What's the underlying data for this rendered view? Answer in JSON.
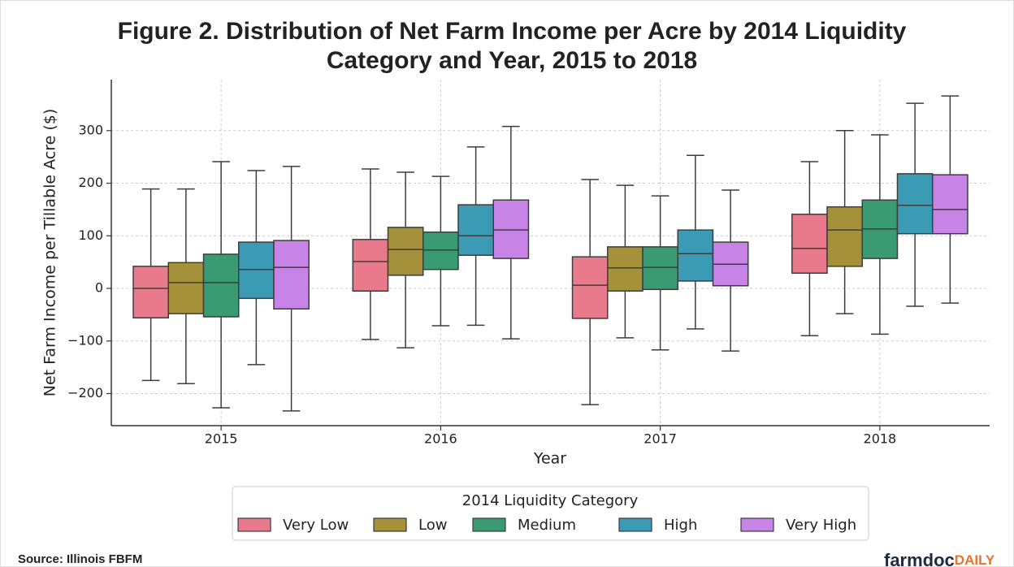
{
  "chart_data": {
    "type": "box",
    "title": "Figure 2. Distribution of Net Farm Income per Acre by 2014 Liquidity Category and Year, 2015 to 2018",
    "title_lines": [
      "Figure 2. Distribution of Net Farm Income per Acre by 2014 Liquidity",
      "Category and Year, 2015 to 2018"
    ],
    "x_label": "Year",
    "y_label": "Net Farm Income per Tillable Acre ($)",
    "categories": [
      "2015",
      "2016",
      "2017",
      "2018"
    ],
    "ylim": [
      -261,
      397
    ],
    "yticks": [
      {
        "value": -200,
        "label": "−200"
      },
      {
        "value": -100,
        "label": "−100"
      },
      0,
      100,
      200,
      300
    ],
    "grid": true,
    "legend_title": "2014 Liquidity Category",
    "legend_position": "bottom",
    "series": [
      {
        "name": "Very Low",
        "color": "#e87a8c",
        "min": [
          -175,
          -97,
          -221,
          -90
        ],
        "q1": [
          -56,
          -5,
          -57,
          29
        ],
        "median": [
          0,
          51,
          6,
          76
        ],
        "q3": [
          42,
          93,
          60,
          141
        ],
        "max": [
          189,
          227,
          207,
          241
        ]
      },
      {
        "name": "Low",
        "color": "#a4913a",
        "min": [
          -181,
          -113,
          -94,
          -48
        ],
        "q1": [
          -48,
          25,
          -5,
          42
        ],
        "median": [
          11,
          74,
          39,
          111
        ],
        "q3": [
          49,
          116,
          79,
          155
        ],
        "max": [
          189,
          221,
          196,
          300
        ]
      },
      {
        "name": "Medium",
        "color": "#3a9a72",
        "min": [
          -227,
          -71,
          -117,
          -87
        ],
        "q1": [
          -54,
          36,
          -2,
          57
        ],
        "median": [
          11,
          73,
          40,
          113
        ],
        "q3": [
          65,
          107,
          79,
          168
        ],
        "max": [
          241,
          213,
          176,
          292
        ]
      },
      {
        "name": "High",
        "color": "#3c9bb4",
        "min": [
          -145,
          -70,
          -77,
          -34
        ],
        "q1": [
          -19,
          63,
          14,
          104
        ],
        "median": [
          36,
          100,
          66,
          158
        ],
        "q3": [
          88,
          159,
          111,
          218
        ],
        "max": [
          224,
          269,
          253,
          352
        ]
      },
      {
        "name": "Very High",
        "color": "#c883e6",
        "min": [
          -233,
          -96,
          -119,
          -28
        ],
        "q1": [
          -39,
          57,
          5,
          104
        ],
        "median": [
          40,
          111,
          46,
          150
        ],
        "q3": [
          91,
          168,
          88,
          216
        ],
        "max": [
          232,
          308,
          187,
          366
        ]
      }
    ]
  },
  "source": "Source: Illinois FBFM",
  "logo": {
    "main": "farmdoc",
    "accent": "DAILY"
  }
}
